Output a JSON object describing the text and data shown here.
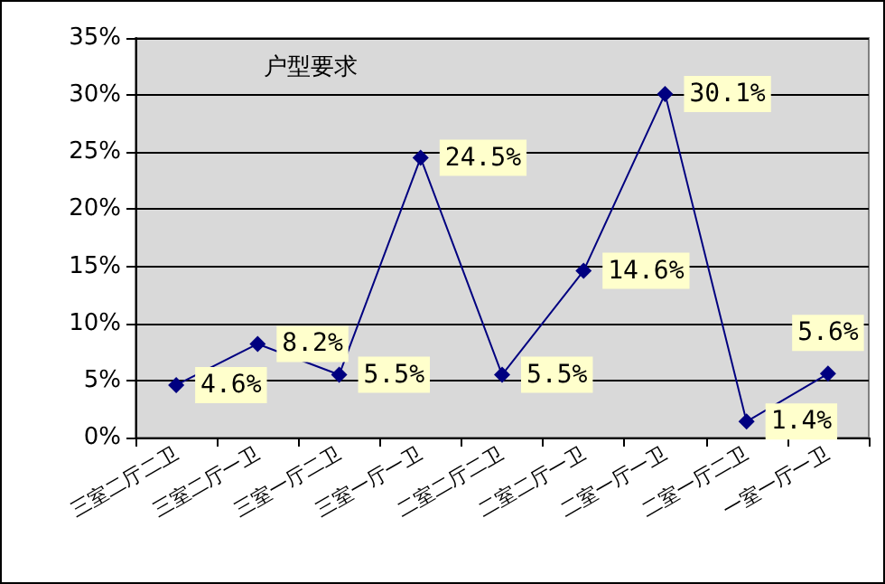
{
  "chart_data": {
    "type": "line",
    "title": "户型要求",
    "categories": [
      "三室二厅二卫",
      "三室二厅一卫",
      "三室一厅二卫",
      "三室一厅一卫",
      "二室二厅二卫",
      "二室二厅一卫",
      "二室一厅一卫",
      "二室一厅二卫",
      "一室一厅一卫"
    ],
    "series": [
      {
        "color": "#000080",
        "values": [
          4.6,
          8.2,
          5.5,
          24.5,
          5.5,
          14.6,
          30.1,
          1.4,
          5.6
        ],
        "value_labels": [
          "4.6%",
          "8.2%",
          "5.5%",
          "24.5%",
          "5.5%",
          "14.6%",
          "30.1%",
          "1.4%",
          "5.6%"
        ]
      }
    ],
    "ylim": [
      0,
      35
    ],
    "yticks": [
      {
        "value": 0,
        "label": "0%"
      },
      {
        "value": 5,
        "label": "5%"
      },
      {
        "value": 10,
        "label": "10%"
      },
      {
        "value": 15,
        "label": "15%"
      },
      {
        "value": 20,
        "label": "20%"
      },
      {
        "value": 25,
        "label": "25%"
      },
      {
        "value": 30,
        "label": "30%"
      },
      {
        "value": 35,
        "label": "35%"
      }
    ],
    "grid": "y",
    "marker": "diamond",
    "line_style": "solid"
  }
}
